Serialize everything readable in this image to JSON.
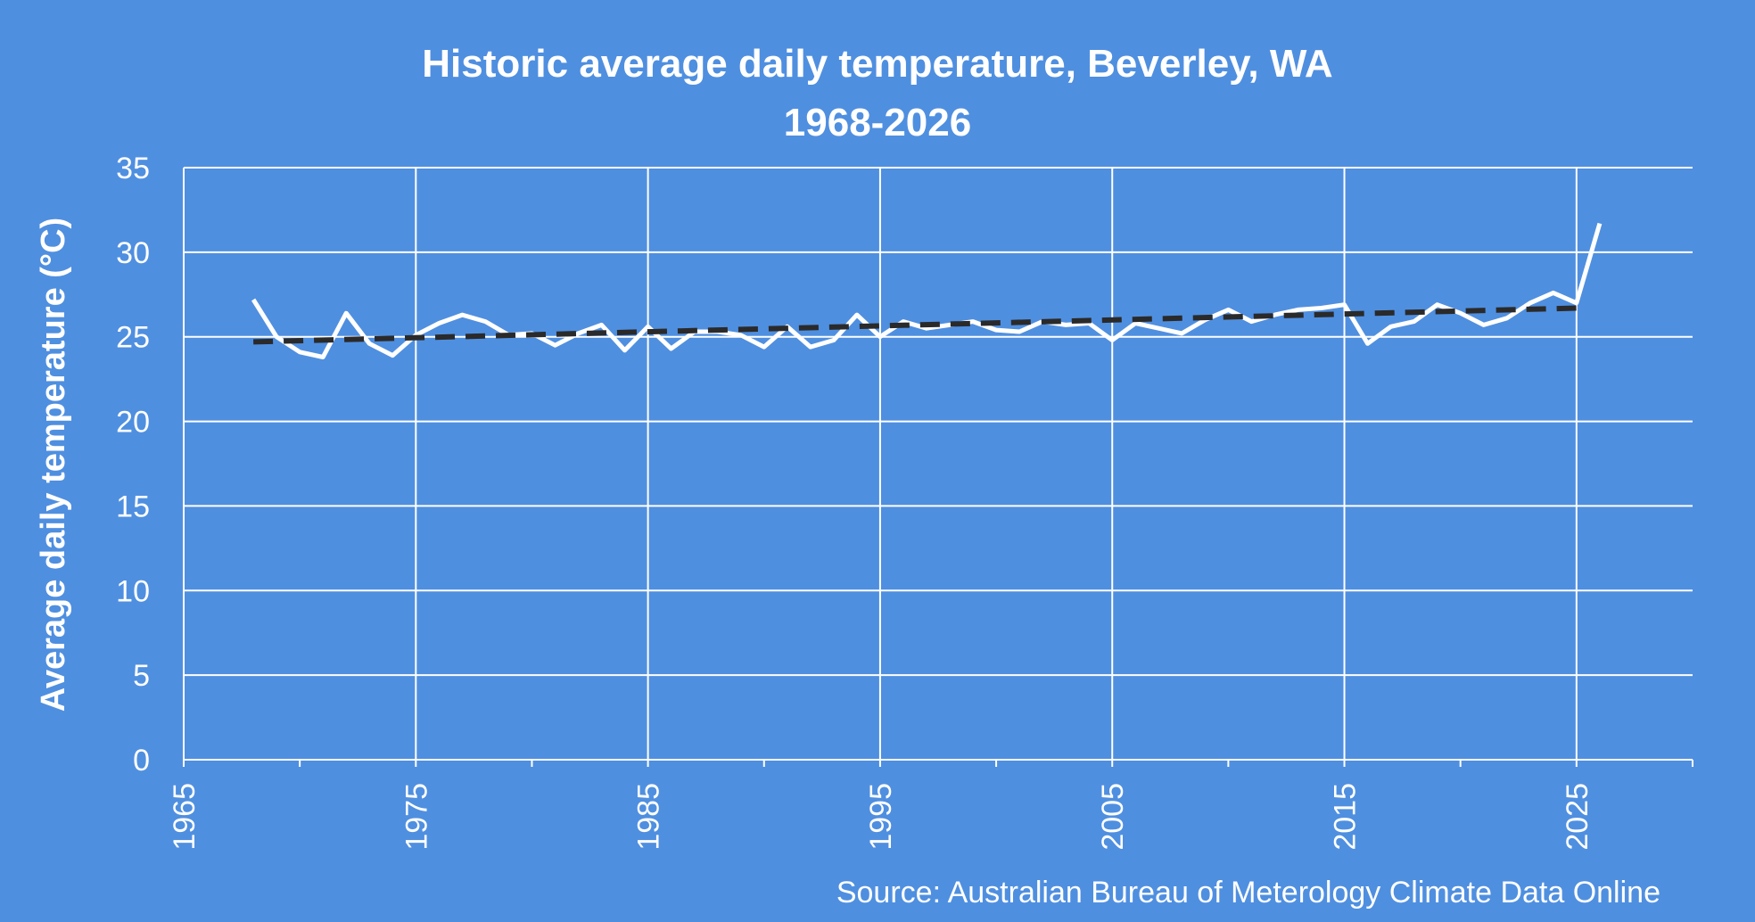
{
  "chart_data": {
    "type": "line",
    "title": "Historic average daily temperature, Beverley, WA",
    "subtitle": "1968-2026",
    "ylabel": "Average daily temperature  (°C)",
    "xlabel": "",
    "source": "Source: Australian Bureau of Meterology Climate Data Online",
    "xlim": [
      1965,
      2030
    ],
    "ylim": [
      0,
      35
    ],
    "xticks": [
      1965,
      1975,
      1985,
      1995,
      2005,
      2015,
      2025
    ],
    "yticks": [
      0,
      5,
      10,
      15,
      20,
      25,
      30,
      35
    ],
    "grid": true,
    "series": [
      {
        "x": [
          1968,
          1969,
          1970,
          1971,
          1972,
          1973,
          1974,
          1975,
          1976,
          1977,
          1978,
          1979,
          1980,
          1981,
          1982,
          1983,
          1984,
          1985,
          1986,
          1987,
          1988,
          1989,
          1990,
          1991,
          1992,
          1993,
          1994,
          1995,
          1996,
          1997,
          1998,
          1999,
          2000,
          2001,
          2002,
          2003,
          2004,
          2005,
          2006,
          2007,
          2008,
          2009,
          2010,
          2011,
          2012,
          2013,
          2014,
          2015,
          2016,
          2017,
          2018,
          2019,
          2020,
          2021,
          2022,
          2023,
          2024,
          2025,
          2026
        ],
        "values": [
          27.2,
          25.0,
          24.1,
          23.8,
          26.4,
          24.6,
          23.9,
          25.1,
          25.8,
          26.3,
          25.9,
          25.1,
          25.2,
          24.5,
          25.2,
          25.7,
          24.2,
          25.6,
          24.3,
          25.3,
          25.3,
          25.1,
          24.4,
          25.6,
          24.4,
          24.8,
          26.3,
          25.0,
          25.9,
          25.5,
          25.7,
          25.9,
          25.4,
          25.3,
          25.9,
          25.7,
          25.8,
          24.8,
          25.8,
          25.5,
          25.2,
          26.0,
          26.6,
          25.9,
          26.3,
          26.6,
          26.7,
          26.9,
          24.6,
          25.6,
          25.9,
          26.9,
          26.4,
          25.7,
          26.1,
          27.0,
          27.6,
          27.0,
          31.7
        ],
        "color": "#ffffff"
      },
      {
        "x": [
          1968,
          2025
        ],
        "values": [
          24.7,
          26.7
        ],
        "color": "#2a2a2a",
        "style": "dashed"
      }
    ]
  }
}
